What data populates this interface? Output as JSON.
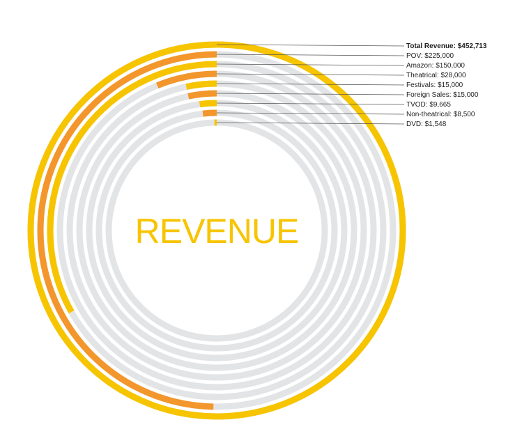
{
  "chart_data": {
    "type": "radial-bar",
    "title": "REVENUE",
    "total": {
      "label": "Total Revenue",
      "value": 452713,
      "display": "Total Revenue: $452,713"
    },
    "series": [
      {
        "name": "POV",
        "value": 225000,
        "display": "POV: $225,000"
      },
      {
        "name": "Amazon",
        "value": 150000,
        "display": "Amazon: $150,000"
      },
      {
        "name": "Theatrical",
        "value": 28000,
        "display": "Theatrical: $28,000"
      },
      {
        "name": "Festivals",
        "value": 15000,
        "display": "Festivals: $15,000"
      },
      {
        "name": "Foreign Sales",
        "value": 15000,
        "display": "Foreign Sales: $15,000"
      },
      {
        "name": "TVOD",
        "value": 9665,
        "display": "TVOD: $9,665"
      },
      {
        "name": "Non-theatrical",
        "value": 8500,
        "display": "Non-theatrical: $8,500"
      },
      {
        "name": "DVD",
        "value": 1548,
        "display": "DVD: $1,548"
      }
    ],
    "colors": {
      "track": "#E3E4E6",
      "yellow": "#F7C400",
      "orange": "#F3962B",
      "text": "#222222",
      "leader": "#555555"
    }
  }
}
